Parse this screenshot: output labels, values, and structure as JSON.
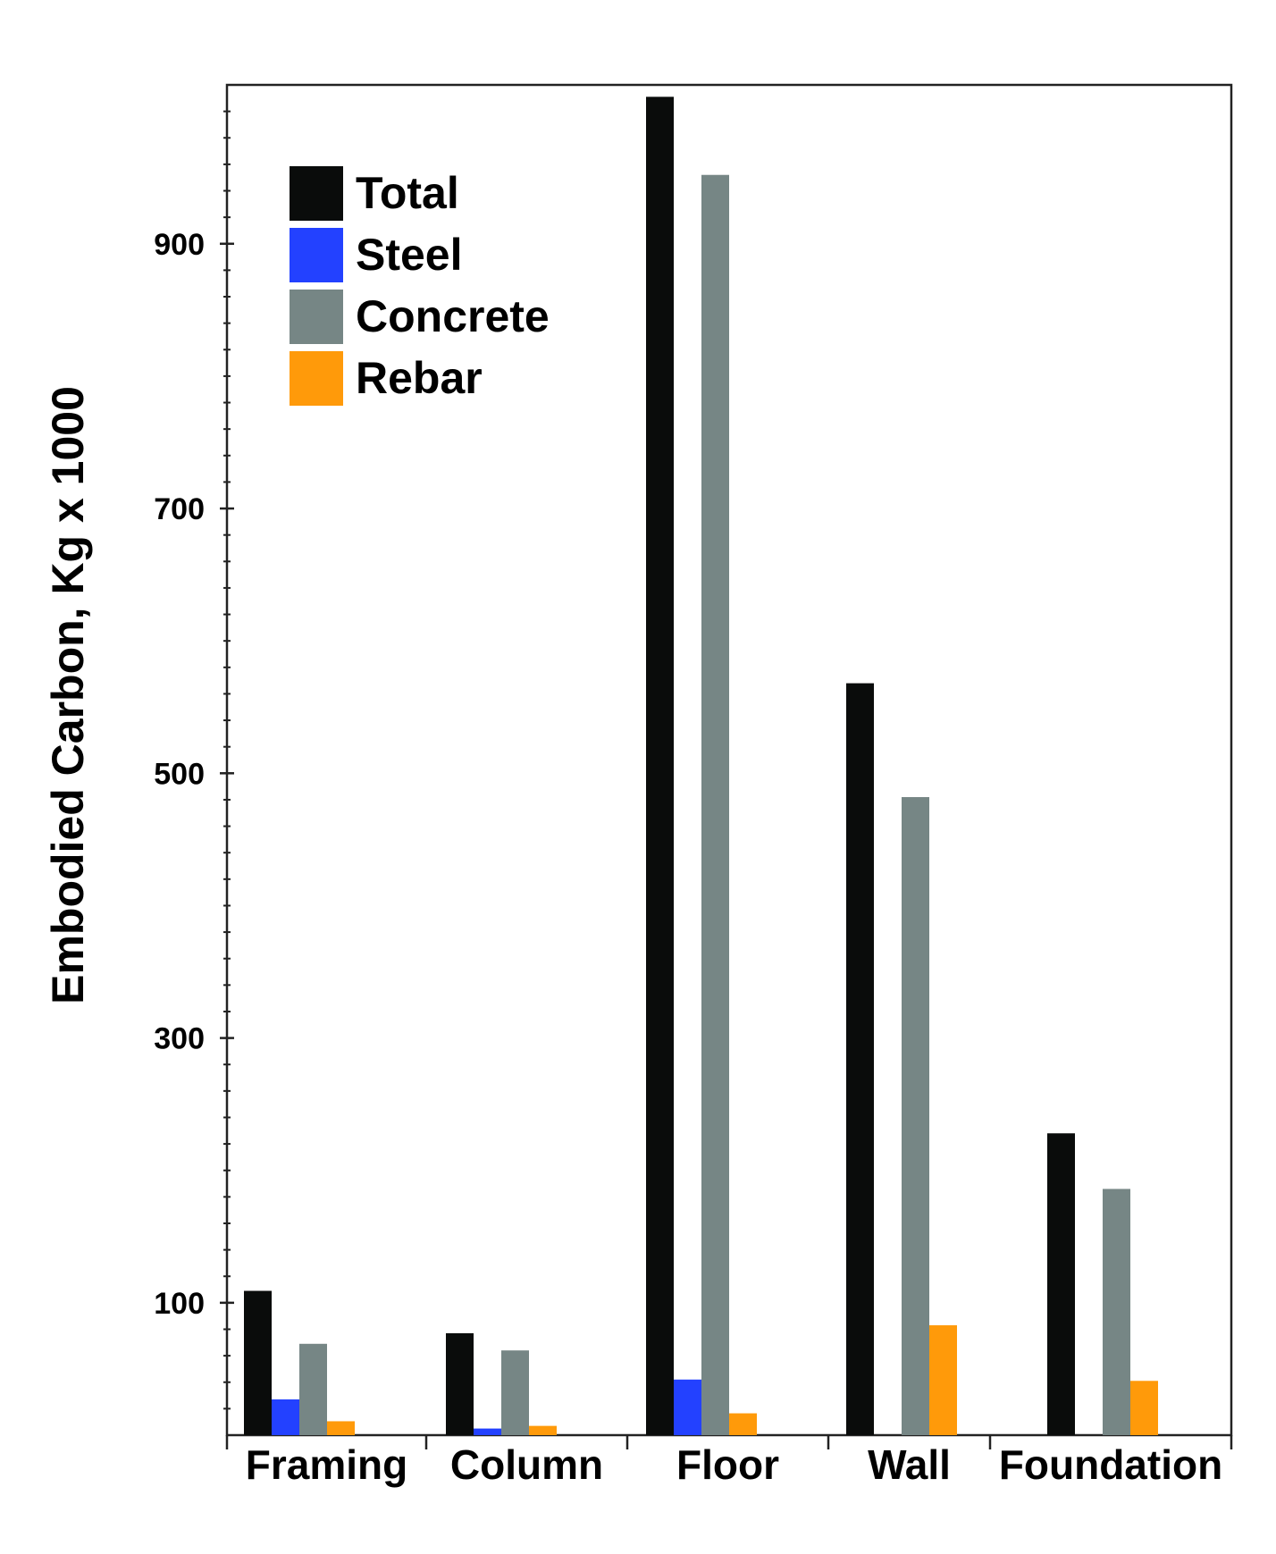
{
  "chart_data": {
    "type": "bar",
    "title": "",
    "xlabel": "",
    "ylabel": "Embodied Carbon, Kg x 1000",
    "ylim": [
      0,
      1020
    ],
    "yticks": [
      100,
      300,
      500,
      700,
      900
    ],
    "minor_tick_step": 20,
    "grid": false,
    "legend_position": "top-left",
    "categories": [
      "Framing",
      "Column",
      "Floor",
      "Wall",
      "Foundation"
    ],
    "series": [
      {
        "name": "Total",
        "color": "#0a0c0b",
        "values": [
          109,
          77,
          1011,
          568,
          228
        ]
      },
      {
        "name": "Steel",
        "color": "#2341ff",
        "values": [
          27,
          5,
          42,
          null,
          null
        ]
      },
      {
        "name": "Concrete",
        "color": "#768685",
        "values": [
          69,
          64,
          952,
          482,
          186
        ]
      },
      {
        "name": "Rebar",
        "color": "#ff9a0a",
        "values": [
          10.5,
          7,
          16.5,
          83,
          41
        ]
      }
    ]
  }
}
